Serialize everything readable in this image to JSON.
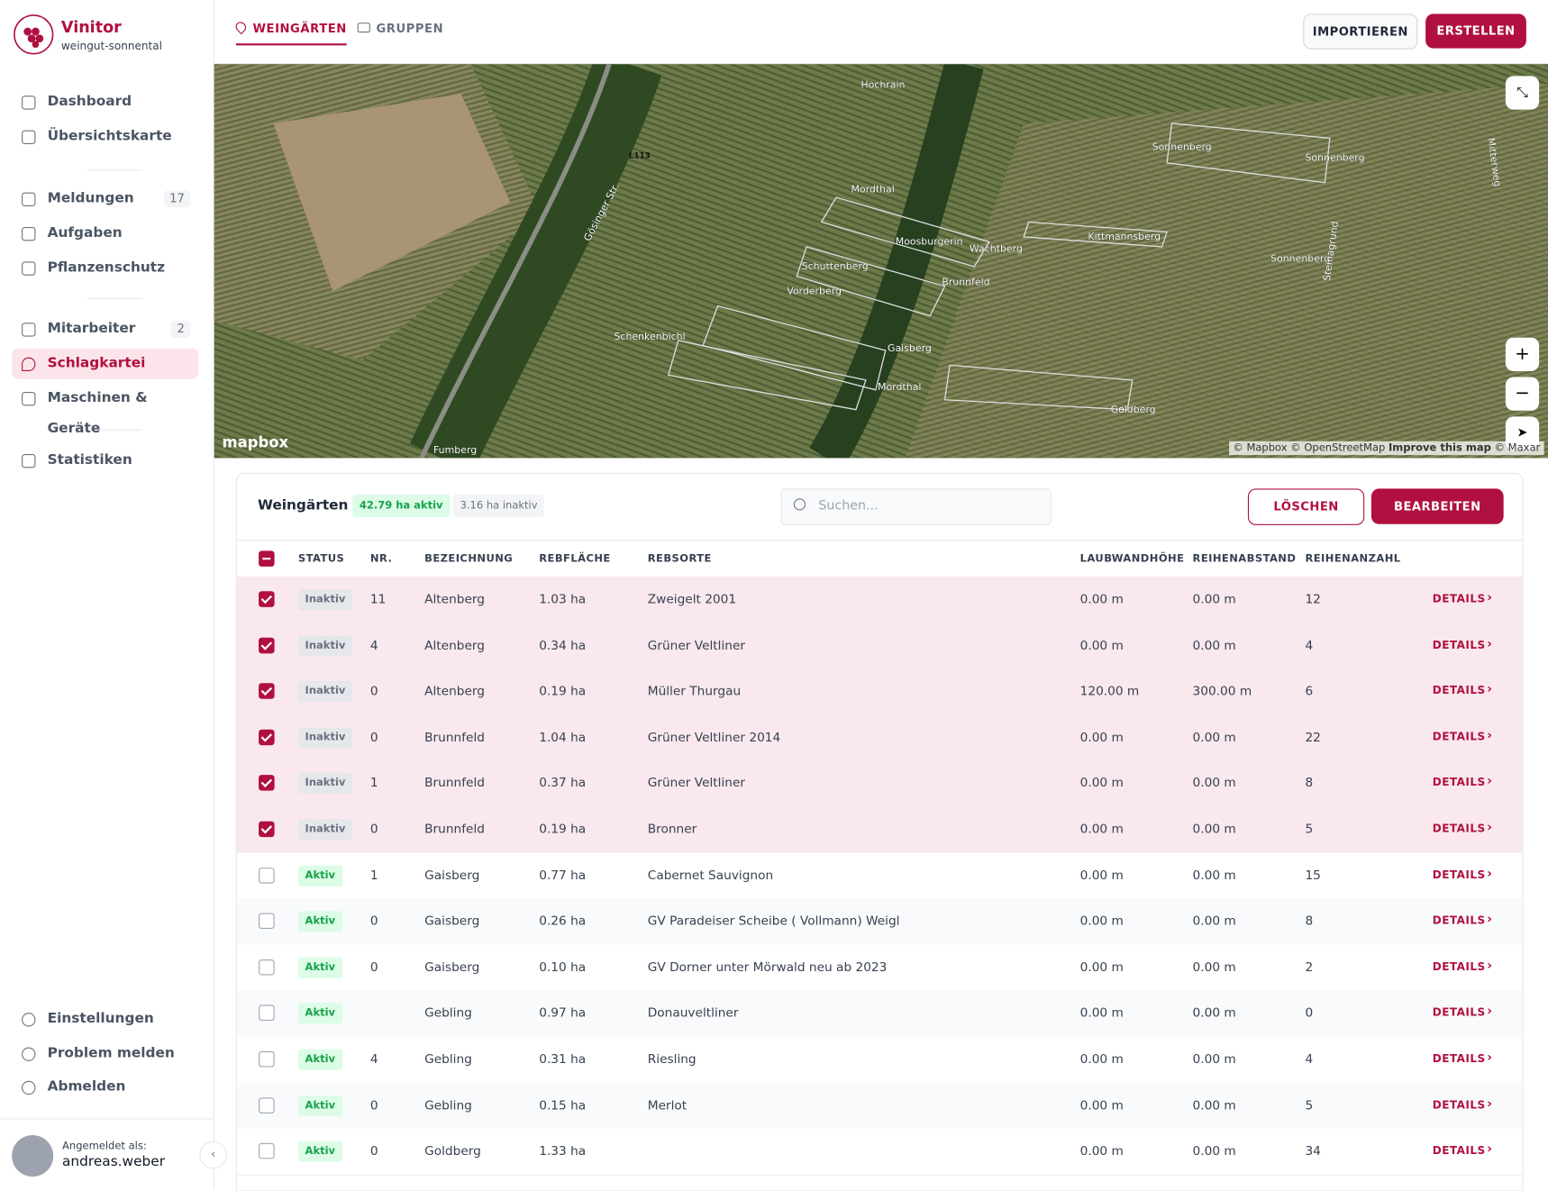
{
  "app": {
    "name": "Vinitor",
    "org": "weingut-sonnental"
  },
  "nav": [
    {
      "label": "Dashboard"
    },
    {
      "label": "Übersichtskarte"
    },
    {
      "label": "Meldungen",
      "badge": "17"
    },
    {
      "label": "Aufgaben"
    },
    {
      "label": "Pflanzenschutz"
    },
    {
      "label": "Mitarbeiter",
      "badge": "2"
    },
    {
      "label": "Schlagkartei",
      "active": true
    },
    {
      "label": "Maschinen & Geräte"
    },
    {
      "label": "Statistiken"
    }
  ],
  "nav_bottom": [
    "Einstellungen",
    "Problem melden",
    "Abmelden"
  ],
  "user": {
    "caption": "Angemeldet als:",
    "name": "andreas.weber"
  },
  "tabs": [
    "WEINGÄRTEN",
    "GRUPPEN"
  ],
  "actions": [
    "IMPORTIEREN",
    "ERSTELLEN"
  ],
  "map": {
    "labels": [
      "Hochrain",
      "L113",
      "Gösinger Str.",
      "Sonnenberg",
      "Sonnenberg",
      "Mordthal",
      "Moosburgerin",
      "Wachtberg",
      "Kittmannsberg",
      "Sonnenberg",
      "Schuttenberg",
      "Brunnfeld",
      "Vorderberg",
      "Steinagrund",
      "Schenkenbichl",
      "Gaisberg",
      "Mordthal",
      "Goldberg",
      "Fumberg",
      "Mitterweg"
    ],
    "logo": "mapbox",
    "attribution": "© Mapbox © OpenStreetMap",
    "improve": "Improve this map",
    "maxar": "© Maxar"
  },
  "table": {
    "title": "Weingärten",
    "active_badge": "42.79 ha aktiv",
    "inactive_badge": "3.16 ha inaktiv",
    "search_placeholder": "Suchen...",
    "delete": "LÖSCHEN",
    "edit": "BEARBEITEN",
    "action_label": "DETAILS",
    "columns": [
      "STATUS",
      "NR.",
      "BEZEICHNUNG",
      "REBFLÄCHE",
      "REBSORTE",
      "LAUBWANDHÖHE",
      "REIHENABSTAND",
      "REIHENANZAHL"
    ],
    "rows": [
      [
        "Inaktiv",
        "11",
        "Altenberg",
        "1.03 ha",
        "Zweigelt 2001",
        "0.00 m",
        "0.00 m",
        "12"
      ],
      [
        "Inaktiv",
        "4",
        "Altenberg",
        "0.34 ha",
        "Grüner Veltliner",
        "0.00 m",
        "0.00 m",
        "4"
      ],
      [
        "Inaktiv",
        "0",
        "Altenberg",
        "0.19 ha",
        "Müller Thurgau",
        "120.00 m",
        "300.00 m",
        "6"
      ],
      [
        "Inaktiv",
        "0",
        "Brunnfeld",
        "1.04 ha",
        "Grüner Veltliner 2014",
        "0.00 m",
        "0.00 m",
        "22"
      ],
      [
        "Inaktiv",
        "1",
        "Brunnfeld",
        "0.37 ha",
        "Grüner Veltliner",
        "0.00 m",
        "0.00 m",
        "8"
      ],
      [
        "Inaktiv",
        "0",
        "Brunnfeld",
        "0.19 ha",
        "Bronner",
        "0.00 m",
        "0.00 m",
        "5"
      ],
      [
        "Aktiv",
        "1",
        "Gaisberg",
        "0.77 ha",
        "Cabernet Sauvignon",
        "0.00 m",
        "0.00 m",
        "15"
      ],
      [
        "Aktiv",
        "0",
        "Gaisberg",
        "0.26 ha",
        "GV Paradeiser Scheibe ( Vollmann) Weigl",
        "0.00 m",
        "0.00 m",
        "8"
      ],
      [
        "Aktiv",
        "0",
        "Gaisberg",
        "0.10 ha",
        "GV Dorner unter Mörwald neu ab 2023",
        "0.00 m",
        "0.00 m",
        "2"
      ],
      [
        "Aktiv",
        null,
        "Gebling",
        "0.97 ha",
        "Donauveltliner",
        "0.00 m",
        "0.00 m",
        "0"
      ],
      [
        "Aktiv",
        "4",
        "Gebling",
        "0.31 ha",
        "Riesling",
        "0.00 m",
        "0.00 m",
        "4"
      ],
      [
        "Aktiv",
        "0",
        "Gebling",
        "0.15 ha",
        "Merlot",
        "0.00 m",
        "0.00 m",
        "5"
      ],
      [
        "Aktiv",
        "0",
        "Goldberg",
        "1.33 ha",
        null,
        "0.00 m",
        "0.00 m",
        "34"
      ]
    ],
    "selected": [
      true,
      true,
      true,
      true,
      true,
      true,
      false,
      false,
      false,
      false,
      false,
      false,
      false
    ]
  }
}
